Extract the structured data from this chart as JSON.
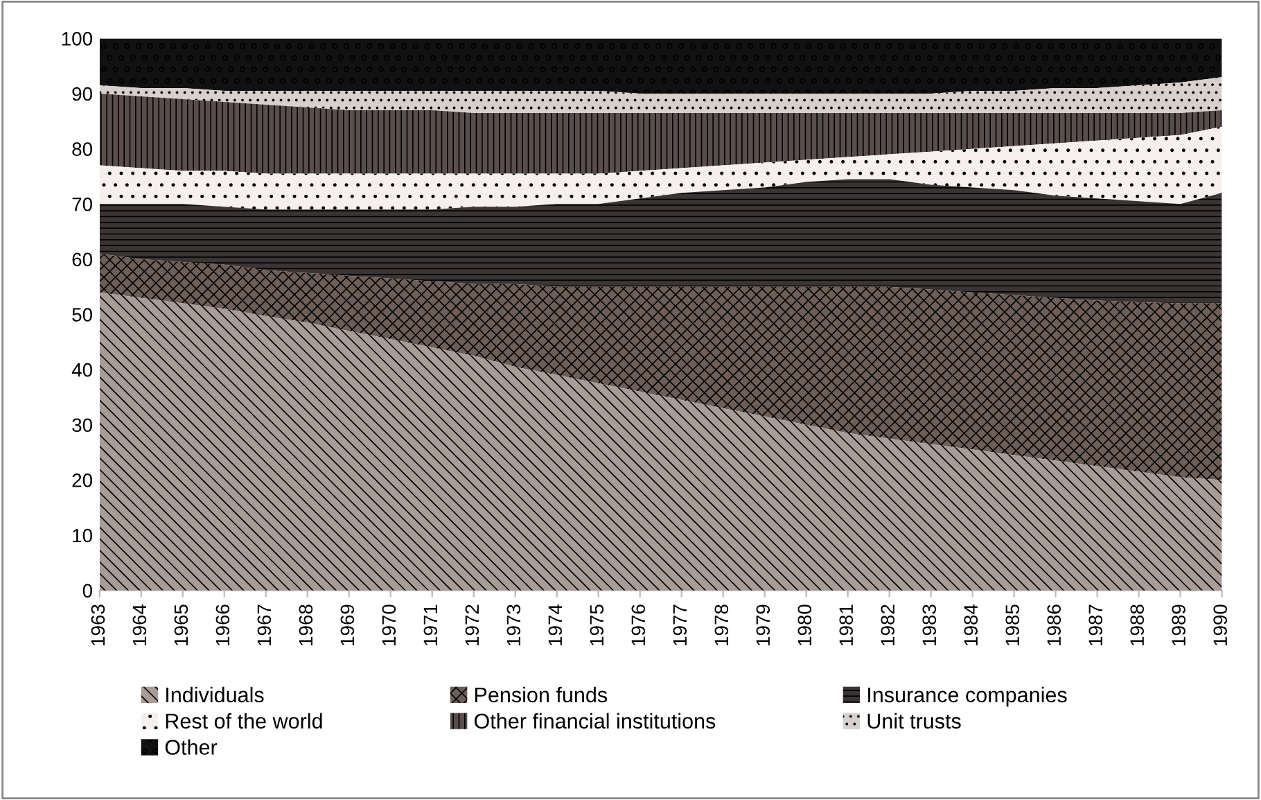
{
  "chart_data": {
    "type": "area",
    "stacked": true,
    "categories": [
      "1963",
      "1964",
      "1965",
      "1966",
      "1967",
      "1968",
      "1969",
      "1970",
      "1971",
      "1972",
      "1973",
      "1974",
      "1975",
      "1976",
      "1977",
      "1978",
      "1979",
      "1980",
      "1981",
      "1982",
      "1983",
      "1984",
      "1985",
      "1986",
      "1987",
      "1988",
      "1989",
      "1990"
    ],
    "series": [
      {
        "name": "Individuals",
        "color": "#a89c97",
        "values": [
          54,
          53,
          52,
          51,
          49.7,
          48.5,
          47,
          45.5,
          44,
          42.5,
          40.5,
          39,
          37.5,
          36,
          34.5,
          33,
          31.5,
          30,
          28.5,
          27.5,
          26.5,
          25.5,
          24.5,
          23.5,
          22.5,
          21.5,
          20.5,
          20
        ]
      },
      {
        "name": "Pension funds",
        "color": "#6e5e58",
        "values": [
          7,
          7,
          7.5,
          8,
          8.3,
          9,
          10,
          11,
          12,
          13,
          15,
          16,
          17.5,
          19,
          20.5,
          22,
          23.5,
          25,
          26.5,
          27.5,
          28,
          28.5,
          29,
          29.5,
          30,
          30.7,
          31.5,
          32
        ]
      },
      {
        "name": "Insurance companies",
        "color": "#3a3434",
        "values": [
          9,
          10,
          10.5,
          10.5,
          11,
          11.5,
          12,
          12.5,
          13,
          14,
          14,
          15,
          15,
          16,
          17,
          17.5,
          18,
          19,
          19.5,
          19.5,
          19,
          19,
          19,
          18.5,
          18.5,
          18.3,
          18,
          20
        ]
      },
      {
        "name": "Rest of the world",
        "color": "#f5f0ee",
        "values": [
          7,
          6.5,
          6,
          6.5,
          6.5,
          6.5,
          6.5,
          6.5,
          6.5,
          6,
          6,
          5.5,
          5.5,
          5,
          4.5,
          4.5,
          4.5,
          4,
          4,
          4.5,
          6,
          7,
          8,
          9.5,
          10.5,
          11.5,
          12.5,
          12
        ]
      },
      {
        "name": "Other financial institutions",
        "color": "#5a4e4c",
        "values": [
          13,
          13,
          13,
          12.5,
          12.5,
          12,
          11.5,
          11.5,
          11.5,
          11,
          11,
          11,
          11,
          10.5,
          10,
          9.5,
          9,
          8.5,
          8,
          7.5,
          7,
          6.5,
          6,
          5.5,
          5,
          4.5,
          4,
          3
        ]
      },
      {
        "name": "Unit trusts",
        "color": "#d8d0cc",
        "values": [
          1.5,
          1.5,
          2,
          2,
          2.5,
          3,
          3.5,
          3.5,
          3.5,
          4,
          4,
          4,
          4,
          3.5,
          3.5,
          3.5,
          3.5,
          3.5,
          3.5,
          3.5,
          3.5,
          4,
          4,
          4.5,
          4.5,
          5,
          5.5,
          6
        ]
      },
      {
        "name": "Other",
        "color": "#111111",
        "values": [
          8.5,
          9,
          9,
          9.5,
          9.5,
          9.5,
          9.5,
          9.5,
          9.5,
          9.5,
          9.5,
          9.5,
          9.5,
          10,
          10,
          10,
          10,
          10,
          10,
          10,
          10,
          9.5,
          9.5,
          9,
          9,
          8.5,
          8,
          7
        ]
      }
    ],
    "ylim": [
      0,
      100
    ],
    "yticks": [
      0,
      10,
      20,
      30,
      40,
      50,
      60,
      70,
      80,
      90,
      100
    ],
    "grid": false,
    "legend": "bottom"
  }
}
